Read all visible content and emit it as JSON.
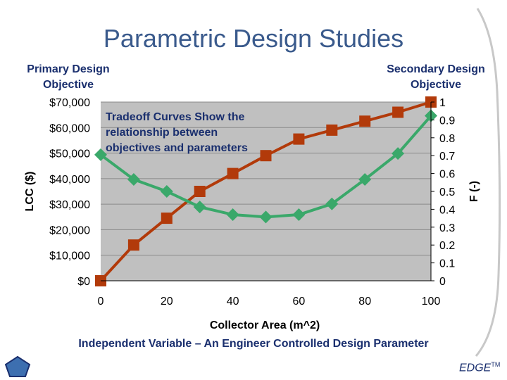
{
  "slide": {
    "title": "Parametric Design Studies",
    "primary_objective": "Primary Design Objective",
    "secondary_objective": "Secondary Design Objective",
    "annotation": [
      "Tradeoff Curves Show the",
      "relationship between",
      "objectives and parameters"
    ],
    "bottom_caption": "Independent Variable – An Engineer Controlled Design Parameter",
    "logo": "EDGE",
    "logo_mark": "TM"
  },
  "colors": {
    "title": "#3a5a8c",
    "text_dark_blue": "#1a2f6e",
    "plot_background": "#c0c0c0",
    "lcc_series": "#b23a0a",
    "f_series": "#3aa86a",
    "pentagon_fill": "#3d6fb0"
  },
  "chart_data": {
    "type": "line",
    "xlabel": "Collector Area  (m^2)",
    "ylabel": "LCC ($)",
    "y2label": "F (-)",
    "xlim": [
      0,
      100
    ],
    "ylim": [
      0,
      70000
    ],
    "y2lim": [
      0,
      1
    ],
    "x_ticks": [
      "0",
      "20",
      "40",
      "60",
      "80",
      "100"
    ],
    "y_ticks": [
      "$0",
      "$10,000",
      "$20,000",
      "$30,000",
      "$40,000",
      "$50,000",
      "$60,000",
      "$70,000"
    ],
    "y2_ticks": [
      "0",
      "0.1",
      "0.2",
      "0.3",
      "0.4",
      "0.5",
      "0.6",
      "0.7",
      "0.8",
      "0.9",
      "1"
    ],
    "grid": "horizontal",
    "series": [
      {
        "axis": "left",
        "color": "#b23a0a",
        "marker": "square",
        "x": [
          0,
          10,
          20,
          30,
          40,
          50,
          60,
          70,
          80,
          90,
          100
        ],
        "values": [
          0,
          14000,
          24500,
          35000,
          42000,
          49000,
          55500,
          59000,
          62500,
          66000,
          70000
        ]
      },
      {
        "axis": "right",
        "color": "#3aa86a",
        "marker": "diamond",
        "x": [
          0,
          10,
          20,
          30,
          40,
          50,
          60,
          70,
          80,
          90,
          100
        ],
        "values": [
          0.705,
          0.567,
          0.5,
          0.413,
          0.37,
          0.357,
          0.37,
          0.43,
          0.567,
          0.712,
          0.923
        ]
      }
    ]
  }
}
